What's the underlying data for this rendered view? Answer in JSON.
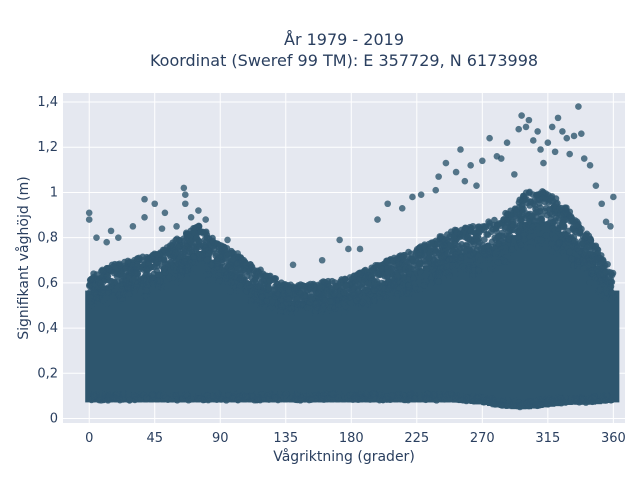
{
  "chart_data": {
    "type": "scatter",
    "title_lines": [
      "År 1979 - 2019",
      "Koordinat (Sweref 99 TM): E 357729, N 6173998"
    ],
    "xlabel": "Vågriktning (grader)",
    "ylabel": "Signifikant våghöjd (m)",
    "xlim": [
      -18,
      368
    ],
    "ylim": [
      -0.02,
      1.44
    ],
    "x_ticks": [
      0,
      45,
      90,
      135,
      180,
      225,
      270,
      315,
      360
    ],
    "x_tick_labels": [
      "0",
      "45",
      "90",
      "135",
      "180",
      "225",
      "270",
      "315",
      "360"
    ],
    "y_ticks": [
      0,
      0.2,
      0.4,
      0.6,
      0.8,
      1.0,
      1.2,
      1.4
    ],
    "y_tick_labels": [
      "0",
      "0,2",
      "0,4",
      "0,6",
      "0,8",
      "1",
      "1,2",
      "1,4"
    ],
    "grid": true,
    "background_color": "#e5e8f0",
    "marker_color": "#2e566e",
    "series": [
      {
        "band_envelope": {
          "x": [
            0,
            20,
            45,
            65,
            75,
            90,
            110,
            135,
            150,
            180,
            200,
            225,
            250,
            270,
            290,
            300,
            315,
            330,
            345,
            360
          ],
          "y_min": [
            0.08,
            0.08,
            0.08,
            0.08,
            0.08,
            0.08,
            0.08,
            0.08,
            0.08,
            0.08,
            0.08,
            0.08,
            0.08,
            0.07,
            0.05,
            0.05,
            0.06,
            0.07,
            0.07,
            0.08
          ],
          "y_max": [
            0.62,
            0.66,
            0.7,
            0.78,
            0.82,
            0.74,
            0.66,
            0.57,
            0.57,
            0.6,
            0.66,
            0.72,
            0.8,
            0.82,
            0.88,
            0.96,
            0.96,
            0.88,
            0.76,
            0.62
          ]
        },
        "outliers": [
          {
            "x": 0,
            "y": 0.91
          },
          {
            "x": 0,
            "y": 0.88
          },
          {
            "x": 5,
            "y": 0.8
          },
          {
            "x": 12,
            "y": 0.78
          },
          {
            "x": 15,
            "y": 0.83
          },
          {
            "x": 20,
            "y": 0.8
          },
          {
            "x": 30,
            "y": 0.85
          },
          {
            "x": 38,
            "y": 0.89
          },
          {
            "x": 38,
            "y": 0.97
          },
          {
            "x": 45,
            "y": 0.95
          },
          {
            "x": 50,
            "y": 0.84
          },
          {
            "x": 52,
            "y": 0.91
          },
          {
            "x": 60,
            "y": 0.85
          },
          {
            "x": 65,
            "y": 1.02
          },
          {
            "x": 66,
            "y": 0.99
          },
          {
            "x": 66,
            "y": 0.95
          },
          {
            "x": 70,
            "y": 0.89
          },
          {
            "x": 75,
            "y": 0.92
          },
          {
            "x": 80,
            "y": 0.88
          },
          {
            "x": 95,
            "y": 0.79
          },
          {
            "x": 102,
            "y": 0.73
          },
          {
            "x": 140,
            "y": 0.68
          },
          {
            "x": 160,
            "y": 0.7
          },
          {
            "x": 172,
            "y": 0.79
          },
          {
            "x": 178,
            "y": 0.75
          },
          {
            "x": 186,
            "y": 0.75
          },
          {
            "x": 198,
            "y": 0.88
          },
          {
            "x": 205,
            "y": 0.95
          },
          {
            "x": 215,
            "y": 0.93
          },
          {
            "x": 222,
            "y": 0.98
          },
          {
            "x": 228,
            "y": 0.99
          },
          {
            "x": 238,
            "y": 1.01
          },
          {
            "x": 240,
            "y": 1.07
          },
          {
            "x": 245,
            "y": 1.13
          },
          {
            "x": 252,
            "y": 1.09
          },
          {
            "x": 255,
            "y": 1.19
          },
          {
            "x": 258,
            "y": 1.05
          },
          {
            "x": 262,
            "y": 1.12
          },
          {
            "x": 266,
            "y": 1.03
          },
          {
            "x": 270,
            "y": 1.14
          },
          {
            "x": 275,
            "y": 1.24
          },
          {
            "x": 280,
            "y": 1.16
          },
          {
            "x": 283,
            "y": 1.15
          },
          {
            "x": 287,
            "y": 1.22
          },
          {
            "x": 292,
            "y": 1.08
          },
          {
            "x": 295,
            "y": 1.28
          },
          {
            "x": 297,
            "y": 1.34
          },
          {
            "x": 300,
            "y": 1.29
          },
          {
            "x": 302,
            "y": 1.32
          },
          {
            "x": 305,
            "y": 1.23
          },
          {
            "x": 308,
            "y": 1.27
          },
          {
            "x": 310,
            "y": 1.19
          },
          {
            "x": 312,
            "y": 1.13
          },
          {
            "x": 315,
            "y": 1.22
          },
          {
            "x": 318,
            "y": 1.29
          },
          {
            "x": 320,
            "y": 1.18
          },
          {
            "x": 322,
            "y": 1.33
          },
          {
            "x": 325,
            "y": 1.27
          },
          {
            "x": 328,
            "y": 1.24
          },
          {
            "x": 330,
            "y": 1.17
          },
          {
            "x": 333,
            "y": 1.25
          },
          {
            "x": 336,
            "y": 1.38
          },
          {
            "x": 338,
            "y": 1.26
          },
          {
            "x": 340,
            "y": 1.15
          },
          {
            "x": 344,
            "y": 1.12
          },
          {
            "x": 348,
            "y": 1.03
          },
          {
            "x": 352,
            "y": 0.95
          },
          {
            "x": 355,
            "y": 0.87
          },
          {
            "x": 358,
            "y": 0.85
          },
          {
            "x": 360,
            "y": 0.98
          }
        ]
      }
    ]
  }
}
